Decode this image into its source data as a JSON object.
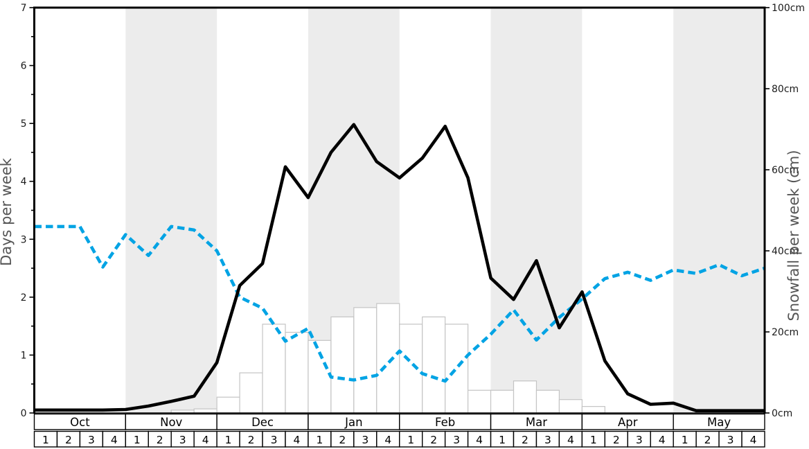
{
  "chart_data": {
    "type": "line",
    "title": "",
    "x": {
      "months": [
        "Oct",
        "Nov",
        "Dec",
        "Jan",
        "Feb",
        "Mar",
        "Apr",
        "May"
      ],
      "week_labels": [
        "1",
        "2",
        "3",
        "4"
      ],
      "weeks_per_month": 4
    },
    "y_left": {
      "label": "Days per week",
      "min": 0,
      "max": 7,
      "major_ticks": [
        0,
        1,
        2,
        3,
        4,
        5,
        6,
        7
      ],
      "minor_tick_step": 0.5
    },
    "y_right": {
      "label": "Snowfall per week (cm)",
      "min": 0,
      "max": 100,
      "major_ticks": [
        0,
        20,
        40,
        60,
        80,
        100
      ],
      "tick_labels": [
        "0cm",
        "20cm",
        "40cm",
        "60cm",
        "80cm",
        "100cm"
      ]
    },
    "shaded_months": [
      "Nov",
      "Jan",
      "Mar",
      "May"
    ],
    "grid": false,
    "legend": "none",
    "series": [
      {
        "name": "snowfall-days-line",
        "type": "line",
        "style": "solid",
        "unit": "days",
        "color": "#000000",
        "values": [
          0.05,
          0.05,
          0.05,
          0.05,
          0.06,
          0.12,
          0.2,
          0.29,
          0.87,
          2.2,
          2.58,
          4.25,
          3.72,
          4.5,
          4.98,
          4.34,
          4.06,
          4.4,
          4.95,
          4.06,
          2.33,
          1.96,
          2.63,
          1.47,
          2.09,
          0.9,
          0.33,
          0.15,
          0.17,
          0.04,
          0.04,
          0.04,
          0.04
        ]
      },
      {
        "name": "dashed-days-line",
        "type": "line",
        "style": "dashed",
        "unit": "days",
        "color": "#00a3e4",
        "values": [
          3.22,
          3.22,
          3.22,
          2.52,
          3.08,
          2.72,
          3.22,
          3.16,
          2.8,
          2.0,
          1.81,
          1.24,
          1.46,
          0.62,
          0.57,
          0.65,
          1.07,
          0.68,
          0.55,
          1.0,
          1.36,
          1.78,
          1.26,
          1.65,
          1.97,
          2.32,
          2.43,
          2.29,
          2.47,
          2.41,
          2.56,
          2.37,
          2.5
        ]
      },
      {
        "name": "snowfall-bars",
        "type": "bar",
        "unit": "cm",
        "fill": "#ffffff",
        "stroke": "#c4c4c4",
        "values": [
          0,
          0,
          0,
          0,
          0,
          0,
          0.7,
          1.0,
          3.9,
          9.9,
          21.9,
          19.9,
          17.9,
          23.7,
          26.0,
          27.0,
          21.9,
          23.7,
          21.9,
          5.6,
          5.6,
          7.9,
          5.6,
          3.3,
          1.6,
          0,
          0,
          0,
          0,
          0,
          0,
          0
        ]
      }
    ],
    "colors": {
      "band": "#ececec",
      "frame": "#000000",
      "axis_title": "#555555",
      "tick_label": "#1a1a1a",
      "table_border": "#000000",
      "table_bg": "#ffffff"
    }
  }
}
